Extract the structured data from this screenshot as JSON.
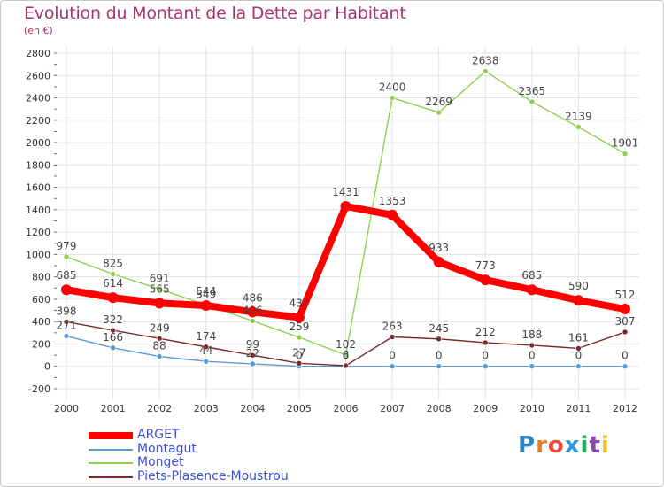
{
  "header": {
    "title": "Evolution du Montant de la Dette par Habitant",
    "subtitle": "(en €)"
  },
  "logo": {
    "text": "Proxiti",
    "letters": [
      "P",
      "r",
      "o",
      "x",
      "i",
      "t",
      "i"
    ],
    "colors": [
      "#2e86c1",
      "#e67e22",
      "#e74c3c",
      "#3498db",
      "#27ae60",
      "#8e44ad",
      "#f1c40f"
    ]
  },
  "chart_data": {
    "type": "line",
    "title": "Evolution du Montant de la Dette par Habitant",
    "subtitle": "(en €)",
    "x": [
      2000,
      2001,
      2002,
      2003,
      2004,
      2005,
      2006,
      2007,
      2008,
      2009,
      2010,
      2011,
      2012
    ],
    "ylim": [
      -200,
      2800
    ],
    "yticks": [
      -200,
      0,
      200,
      400,
      600,
      800,
      1000,
      1200,
      1400,
      1600,
      1800,
      2000,
      2200,
      2400,
      2600,
      2800
    ],
    "grid": true,
    "legend_position": "bottom-left",
    "series": [
      {
        "name": "ARGET",
        "color": "#ff0000",
        "values": [
          685,
          614,
          565,
          544,
          486,
          437,
          1431,
          1353,
          933,
          773,
          685,
          590,
          512
        ],
        "labels": [
          "685",
          "614",
          "565",
          "544",
          "486",
          "437",
          "1431",
          "1353",
          "933",
          "773",
          "685",
          "590",
          "512"
        ]
      },
      {
        "name": "Montagut",
        "color": "#5a9bd4",
        "values": [
          271,
          166,
          88,
          44,
          22,
          0,
          0,
          0,
          0,
          0,
          0,
          0,
          0
        ],
        "labels": [
          "271",
          "166",
          "88",
          "44",
          "22",
          "0",
          "0",
          "0",
          "0",
          "0",
          "0",
          "0",
          "0"
        ]
      },
      {
        "name": "Monget",
        "color": "#8fd14f",
        "values": [
          979,
          825,
          691,
          549,
          406,
          259,
          102,
          2400,
          2269,
          2638,
          2365,
          2139,
          1901
        ],
        "labels": [
          "979",
          "825",
          "691",
          "549",
          "406",
          "259",
          "102",
          "2400",
          "2269",
          "2638",
          "2365",
          "2139",
          "1901"
        ]
      },
      {
        "name": "Piets-Plasence-Moustrou",
        "color": "#7a2a2a",
        "values": [
          398,
          322,
          249,
          174,
          99,
          27,
          6,
          263,
          245,
          212,
          188,
          161,
          307
        ],
        "labels": [
          "398",
          "322",
          "249",
          "174",
          "99",
          "27",
          "6",
          "263",
          "245",
          "212",
          "188",
          "161",
          "307"
        ]
      }
    ]
  }
}
